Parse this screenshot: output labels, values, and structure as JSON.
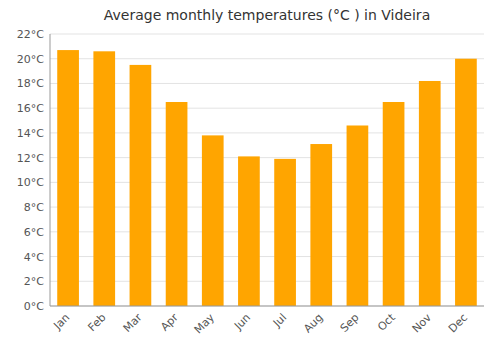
{
  "chart_data": {
    "type": "bar",
    "title": "Average monthly temperatures (°C ) in Videira",
    "categories": [
      "Jan",
      "Feb",
      "Mar",
      "Apr",
      "May",
      "Jun",
      "Jul",
      "Aug",
      "Sep",
      "Oct",
      "Nov",
      "Dec"
    ],
    "values": [
      20.7,
      20.6,
      19.5,
      16.5,
      13.8,
      12.1,
      11.9,
      13.1,
      14.6,
      16.5,
      18.2,
      20.0
    ],
    "color": "#FFA500",
    "ylim": [
      0,
      22
    ],
    "yticks": [
      {
        "value": 0,
        "label": "0°C"
      },
      {
        "value": 2,
        "label": "2°C"
      },
      {
        "value": 4,
        "label": "4°C"
      },
      {
        "value": 6,
        "label": "6°C"
      },
      {
        "value": 8,
        "label": "8°C"
      },
      {
        "value": 10,
        "label": "10°C"
      },
      {
        "value": 12,
        "label": "12°C"
      },
      {
        "value": 14,
        "label": "14°C"
      },
      {
        "value": 16,
        "label": "16°C"
      },
      {
        "value": 18,
        "label": "18°C"
      },
      {
        "value": 20,
        "label": "20°C"
      },
      {
        "value": 22,
        "label": "22°C"
      }
    ],
    "grid": true
  }
}
